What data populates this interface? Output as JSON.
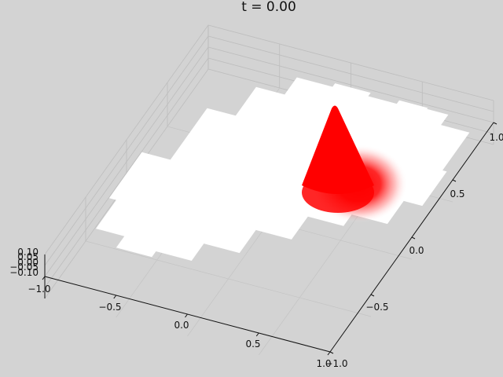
{
  "title": "t =  0.00",
  "chart_data": {
    "type": "surface",
    "title": "t =  0.00",
    "xlabel": "",
    "ylabel": "",
    "zlabel": "",
    "xlim": [
      -1.0,
      1.0
    ],
    "ylim": [
      -1.0,
      1.0
    ],
    "zlim": [
      -0.1,
      0.1
    ],
    "x_ticks": [
      "−1.0",
      "−0.5",
      "0.0",
      "0.5",
      "1.0"
    ],
    "y_ticks": [
      "−1.0",
      "−0.5",
      "0.0",
      "0.5",
      "1.0"
    ],
    "z_ticks": [
      "−0.10",
      "−0.05",
      "0.00",
      "0.05",
      "0.10"
    ],
    "grid": true,
    "base_color": "#ffffff",
    "peak_color": "#ff0000",
    "background": "#d3d3d3",
    "peak": {
      "x": 0.55,
      "y": 0.55,
      "height": 0.1
    }
  }
}
